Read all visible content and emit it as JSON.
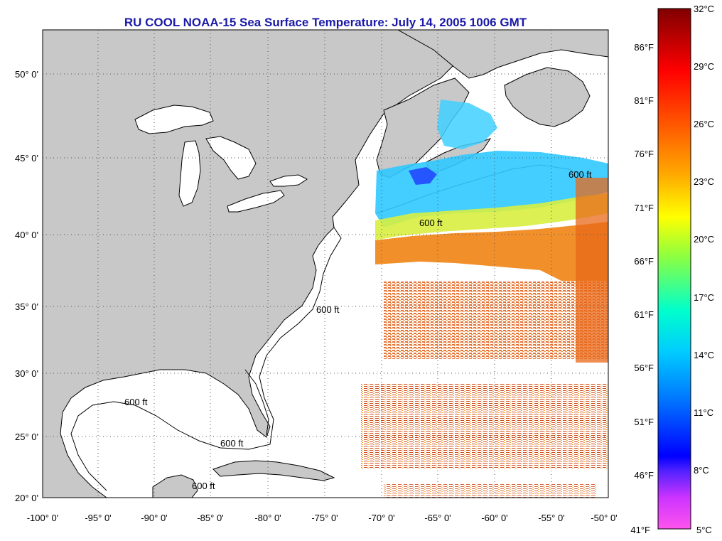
{
  "title": "RU COOL  NOAA-15  Sea Surface Temperature:  July 14, 2005 1006 GMT",
  "longitude_ticks": [
    "-100° 0'",
    "-95° 0'",
    "-90° 0'",
    "-85° 0'",
    "-80° 0'",
    "-75° 0'",
    "-70° 0'",
    "-65° 0'",
    "-60° 0'",
    "-55° 0'",
    "-50° 0'"
  ],
  "latitude_ticks": [
    "50° 0'",
    "45° 0'",
    "40° 0'",
    "35° 0'",
    "30° 0'",
    "25° 0'",
    "20° 0'"
  ],
  "contour_labels": [
    "600 ft",
    "600 ft",
    "600 ft",
    "600 ft",
    "600 ft",
    "600 ft"
  ],
  "colorbar": {
    "celsius_labels": [
      "32°C",
      "29°C",
      "26°C",
      "23°C",
      "20°C",
      "17°C",
      "14°C",
      "11°C",
      "8°C",
      "5°C"
    ],
    "fahrenheit_labels": [
      "86°F",
      "81°F",
      "76°F",
      "71°F",
      "66°F",
      "61°F",
      "56°F",
      "51°F",
      "46°F",
      "41°F"
    ],
    "colors": [
      "#ff33ff",
      "#cc33ff",
      "#6633ff",
      "#0000ff",
      "#0088ff",
      "#00ddff",
      "#00ffcc",
      "#66ff66",
      "#ccff00",
      "#ffff00",
      "#ffaa00",
      "#ff5500",
      "#ff0000",
      "#cc0000",
      "#880000"
    ]
  },
  "colors": {
    "land": "#c8c8c8",
    "ocean": "#ffffff",
    "title": "#1a1aa8",
    "sst_warm": "#e85a10",
    "sst_mid": "#f5c000",
    "sst_cool": "#30c0ff"
  }
}
